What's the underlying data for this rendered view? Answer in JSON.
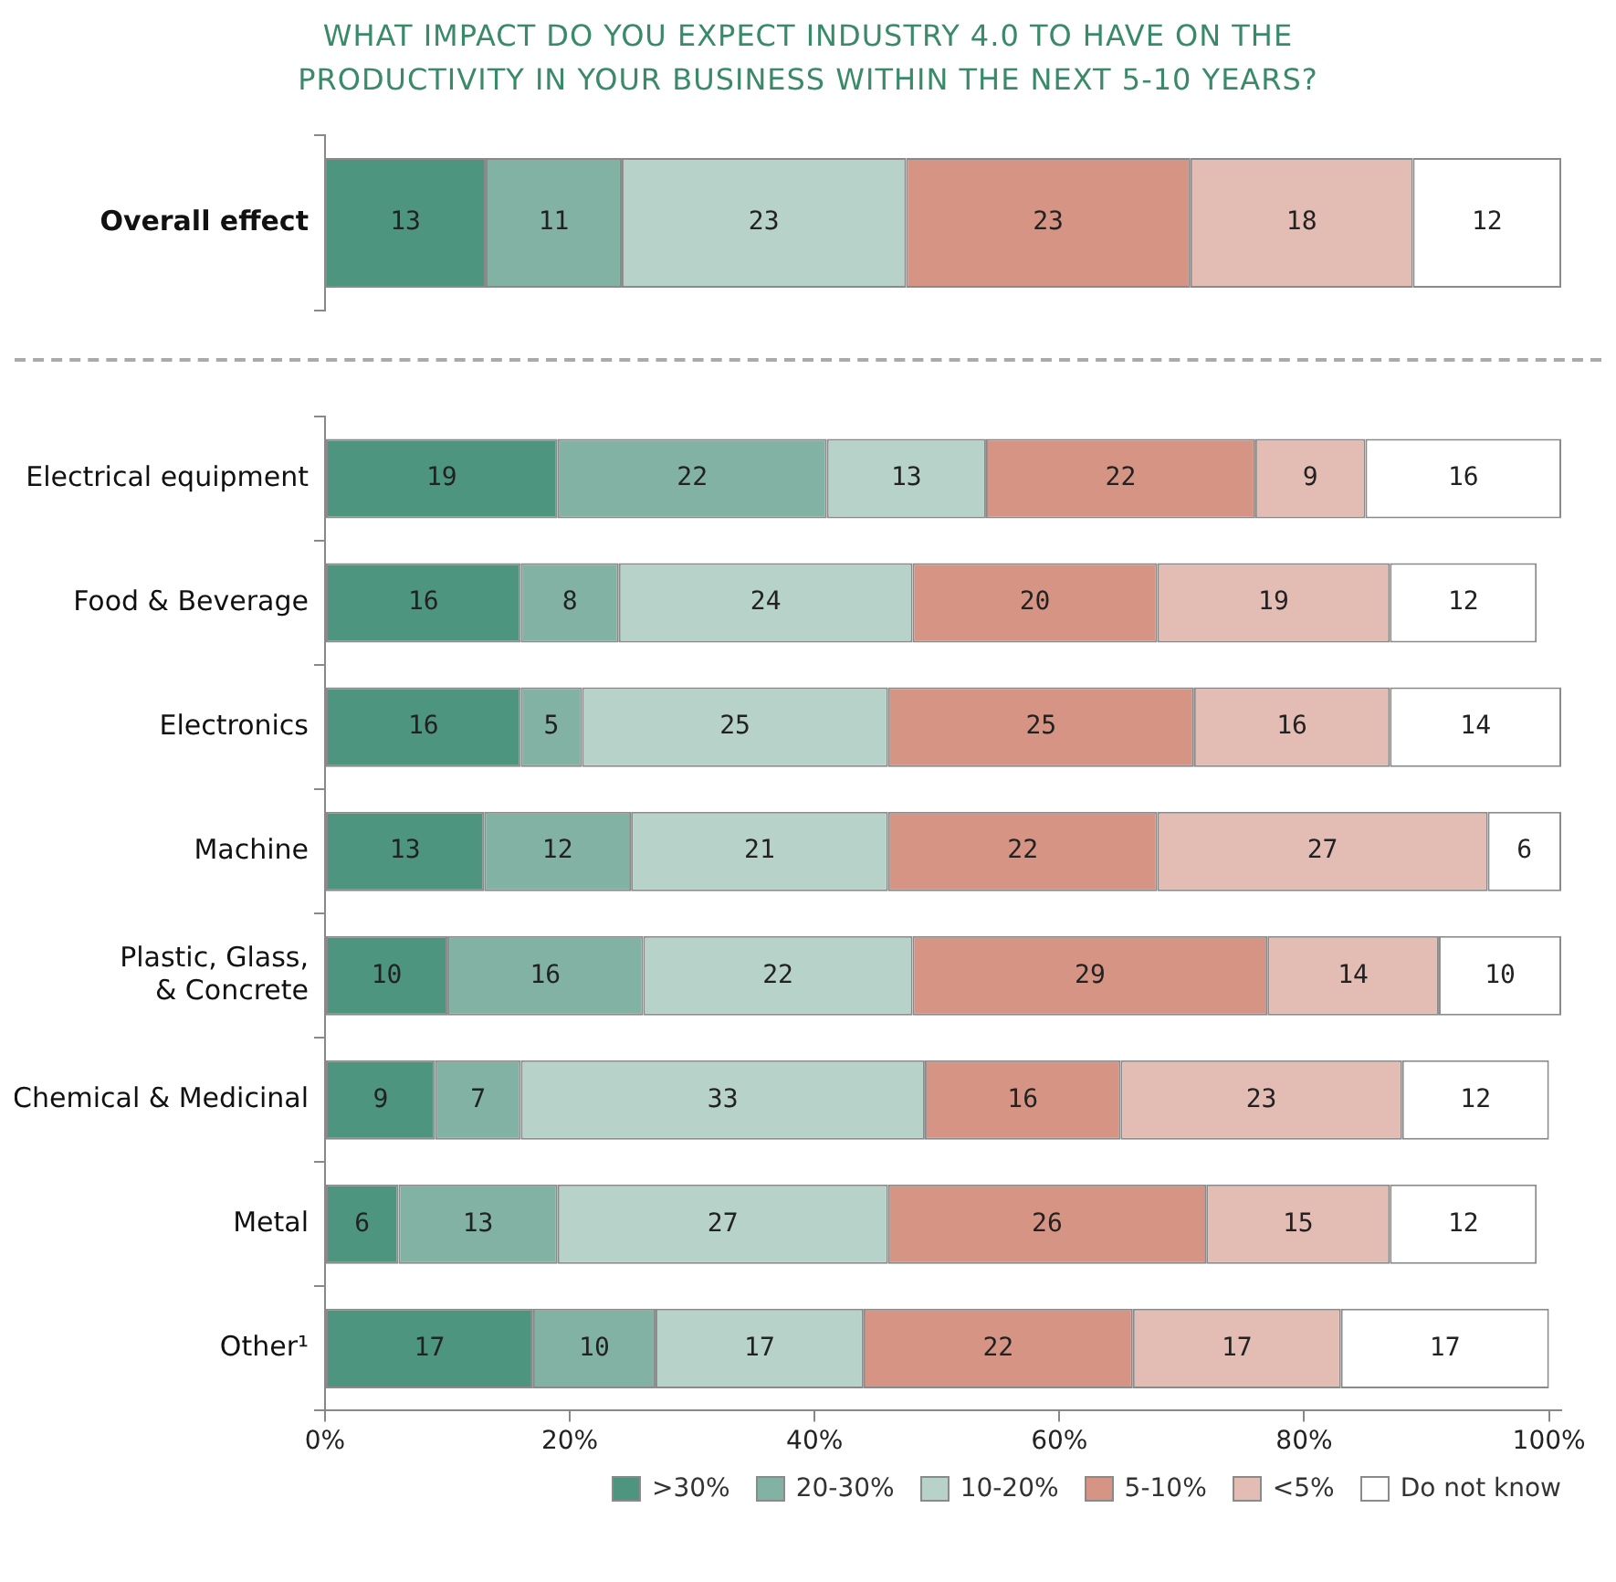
{
  "chart_data": [
    {
      "type": "bar",
      "title": "WHAT IMPACT DO YOU EXPECT INDUSTRY 4.0 TO HAVE ON THE PRODUCTIVITY IN YOUR BUSINESS WITHIN THE NEXT 5-10 YEARS?",
      "orientation": "horizontal",
      "stacked": true,
      "data_labels": true,
      "tick_labels": "y",
      "categories": [
        "Overall effect"
      ],
      "xlim": [
        0,
        100
      ],
      "series": [
        {
          "color": "#4e9580",
          "values": [
            13
          ]
        },
        {
          "color": "#82b2a3",
          "values": [
            11
          ]
        },
        {
          "color": "#b7d2c8",
          "values": [
            23
          ]
        },
        {
          "color": "#d69584",
          "values": [
            23
          ]
        },
        {
          "color": "#e3bcb4",
          "values": [
            18
          ]
        },
        {
          "color": "#ffffff",
          "values": [
            12
          ]
        }
      ]
    },
    {
      "type": "bar",
      "orientation": "horizontal",
      "stacked": true,
      "data_labels": true,
      "legend": "bottom",
      "categories": [
        "Electrical equipment",
        "Food & Beverage",
        "Electronics",
        "Machine",
        "Plastic, Glass, & Concrete",
        "Chemical & Medicinal",
        "Metal",
        "Other¹"
      ],
      "xlim": [
        0,
        101
      ],
      "xticks": [
        {
          "value": 0,
          "label": "0%"
        },
        {
          "value": 20,
          "label": "20%"
        },
        {
          "value": 40,
          "label": "40%"
        },
        {
          "value": 60,
          "label": "60%"
        },
        {
          "value": 80,
          "label": "80%"
        },
        {
          "value": 100,
          "label": "100%"
        }
      ],
      "series": [
        {
          "name": ">30%",
          "color": "#4e9580",
          "values": [
            19,
            16,
            16,
            13,
            10,
            9,
            6,
            17
          ]
        },
        {
          "name": "20-30%",
          "color": "#82b2a3",
          "values": [
            22,
            8,
            5,
            12,
            16,
            7,
            13,
            10
          ]
        },
        {
          "name": "10-20%",
          "color": "#b7d2c8",
          "values": [
            13,
            24,
            25,
            21,
            22,
            33,
            27,
            17
          ]
        },
        {
          "name": "5-10%",
          "color": "#d69584",
          "values": [
            22,
            20,
            25,
            22,
            29,
            16,
            26,
            22
          ]
        },
        {
          "name": "<5%",
          "color": "#e3bcb4",
          "values": [
            9,
            19,
            16,
            27,
            14,
            23,
            15,
            17
          ]
        },
        {
          "name": "Do not know",
          "color": "#ffffff",
          "values": [
            16,
            12,
            14,
            6,
            10,
            12,
            12,
            17
          ]
        }
      ]
    }
  ]
}
